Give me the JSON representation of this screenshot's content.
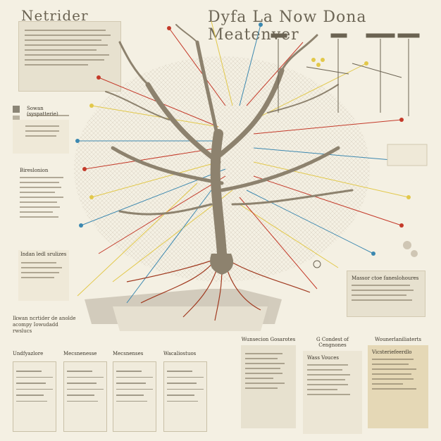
{
  "title_left": "Netrider",
  "title_right": "Dyfa La  Now Dona Meatenver",
  "top_panel_lines": 8,
  "left_notes": [
    {
      "heading": "Sowan (syspatterie)",
      "lines": 2
    },
    {
      "heading": "",
      "lines": 3
    },
    {
      "heading": "Bireslonion",
      "lines": 9
    },
    {
      "heading": "Indan ledl srulizes",
      "lines": 4
    },
    {
      "heading": "Ikwan ncrtider de anolde\nacompy Iowudadd\nrwslucs",
      "lines": 0
    }
  ],
  "bottom_columns": [
    {
      "heading": "Undfyazlore"
    },
    {
      "heading": "Mecsnenesse"
    },
    {
      "heading": "Mecsnenses"
    },
    {
      "heading": "Wacaliostuos"
    }
  ],
  "right_panels": [
    {
      "heading": "Wunsecion Gosarotes"
    },
    {
      "heading": "G Condest of Cengnones"
    },
    {
      "heading": "Wounerlaniliaterts"
    }
  ],
  "sub_panels": [
    {
      "heading": "Wass Vouces"
    },
    {
      "heading": "Vicsteriefeerdlo"
    }
  ],
  "right_note": {
    "heading": "Massor ctoe faneslohoures",
    "lines": 5
  },
  "colors": {
    "background": "#f4f0e3",
    "panel": "#e7e1cf",
    "trunk": "#8d826e",
    "roots": "#a0391f",
    "accent_yellow": "#e2c84a",
    "accent_red": "#c43a2a",
    "accent_blue": "#3c88b0"
  }
}
